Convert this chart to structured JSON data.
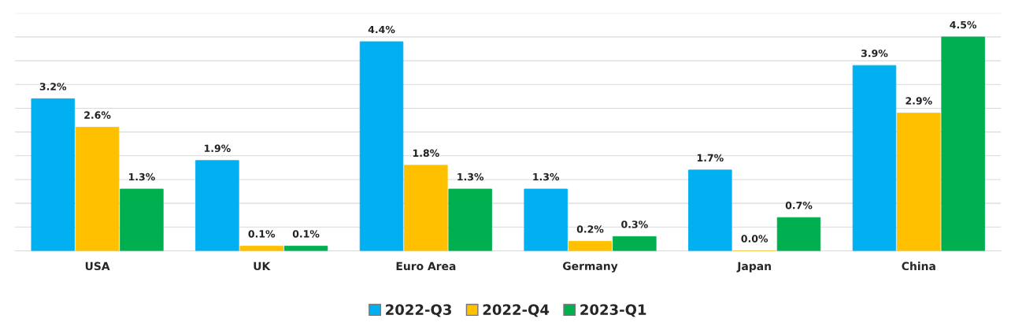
{
  "chart_data": {
    "type": "bar",
    "categories": [
      "USA",
      "UK",
      "Euro Area",
      "Germany",
      "Japan",
      "China"
    ],
    "series": [
      {
        "name": "2022-Q3",
        "color": "#00b0f0",
        "values": [
          3.2,
          1.9,
          4.4,
          1.3,
          1.7,
          3.9
        ],
        "value_labels": [
          "3.2%",
          "1.9%",
          "4.4%",
          "1.3%",
          "1.7%",
          "3.9%"
        ]
      },
      {
        "name": "2022-Q4",
        "color": "#ffc000",
        "values": [
          2.6,
          0.1,
          1.8,
          0.2,
          0.0,
          2.9
        ],
        "value_labels": [
          "2.6%",
          "0.1%",
          "1.8%",
          "0.2%",
          "0.0%",
          "2.9%"
        ]
      },
      {
        "name": "2023-Q1",
        "color": "#00b050",
        "values": [
          1.3,
          0.1,
          1.3,
          0.3,
          0.7,
          4.5
        ],
        "value_labels": [
          "1.3%",
          "0.1%",
          "1.3%",
          "0.3%",
          "0.7%",
          "4.5%"
        ]
      }
    ],
    "ylim": [
      0,
      5
    ],
    "yticks": [
      {
        "value": 0,
        "label": null
      },
      {
        "value": 0.5,
        "label": null
      },
      {
        "value": 1,
        "label": null
      },
      {
        "value": 1.5,
        "label": null
      },
      {
        "value": 2,
        "label": null
      },
      {
        "value": 2.5,
        "label": null
      },
      {
        "value": 3,
        "label": null
      },
      {
        "value": 3.5,
        "label": null
      },
      {
        "value": 4,
        "label": null
      },
      {
        "value": 4.5,
        "label": null
      },
      {
        "value": 5,
        "label": null
      }
    ],
    "tick_labels": "x",
    "grid": "y",
    "legend": "bottom"
  }
}
